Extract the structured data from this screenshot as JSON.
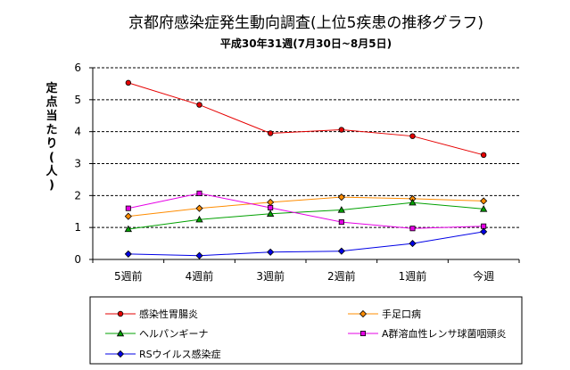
{
  "chart_data": {
    "type": "line",
    "title": "京都府感染症発生動向調査(上位5疾患の推移グラフ)",
    "subtitle": "平成30年31週(7月30日~8月5日)",
    "ylabel": "定点当たり(人)",
    "xlabel": "",
    "categories": [
      "5週前",
      "4週前",
      "3週前",
      "2週前",
      "1週前",
      "今週"
    ],
    "ylim": [
      0,
      6
    ],
    "yticks": [
      0,
      1,
      2,
      3,
      4,
      5,
      6
    ],
    "grid": "horizontal-dashed",
    "legend_position": "bottom",
    "series": [
      {
        "name": "感染性胃腸炎",
        "color": "#e60000",
        "marker": "circle",
        "values": [
          5.53,
          4.84,
          3.95,
          4.06,
          3.86,
          3.27
        ]
      },
      {
        "name": "手足口病",
        "color": "#ff8c00",
        "marker": "diamond",
        "values": [
          1.35,
          1.6,
          1.79,
          1.95,
          1.9,
          1.83
        ]
      },
      {
        "name": "ヘルパンギーナ",
        "color": "#00a000",
        "marker": "triangle",
        "values": [
          0.95,
          1.25,
          1.43,
          1.55,
          1.78,
          1.58
        ]
      },
      {
        "name": "A群溶血性レンサ球菌咽頭炎",
        "color": "#e600e6",
        "marker": "square",
        "values": [
          1.6,
          2.07,
          1.62,
          1.17,
          0.97,
          1.04
        ]
      },
      {
        "name": "RSウイルス感染症",
        "color": "#0000e6",
        "marker": "diamond",
        "values": [
          0.17,
          0.12,
          0.23,
          0.26,
          0.5,
          0.87
        ]
      }
    ]
  }
}
